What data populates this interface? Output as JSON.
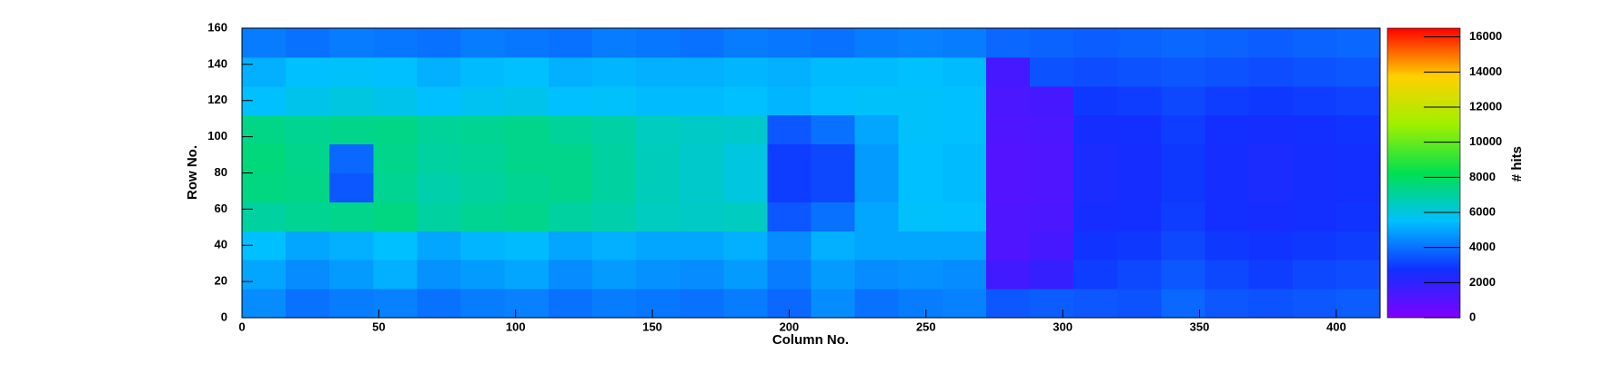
{
  "chart_data": {
    "type": "heatmap",
    "xlabel": "Column No.",
    "ylabel": "Row No.",
    "zlabel": "# hits",
    "xbins": [
      0,
      16,
      32,
      48,
      64,
      80,
      96,
      112,
      128,
      144,
      160,
      176,
      192,
      208,
      224,
      240,
      256,
      272,
      288,
      304,
      320,
      336,
      352,
      368,
      384,
      400,
      416
    ],
    "ybins": [
      0,
      16,
      32,
      48,
      64,
      80,
      96,
      112,
      128,
      144,
      160
    ],
    "values": [
      [
        4500,
        4000,
        4200,
        4300,
        4000,
        4200,
        4300,
        4000,
        4200,
        4100,
        4000,
        4200,
        3800,
        4500,
        4000,
        4200,
        4300,
        3500,
        3600,
        3500,
        3400,
        3800,
        3500,
        3400,
        3500,
        3600
      ],
      [
        5000,
        4500,
        4800,
        5200,
        4600,
        4800,
        5000,
        4500,
        4800,
        4600,
        4500,
        4800,
        4200,
        4800,
        4500,
        4600,
        4500,
        1500,
        1800,
        3000,
        3200,
        3500,
        3200,
        3000,
        3200,
        3300
      ],
      [
        5500,
        5000,
        5200,
        5500,
        5000,
        5300,
        5400,
        5000,
        5200,
        5000,
        5000,
        5200,
        4500,
        5200,
        5000,
        5000,
        5000,
        1200,
        1400,
        2800,
        2900,
        3200,
        2900,
        2800,
        2900,
        3000
      ],
      [
        7000,
        7200,
        7300,
        7500,
        7000,
        7200,
        7300,
        7000,
        6800,
        6500,
        6400,
        6500,
        3500,
        4000,
        5000,
        5600,
        5500,
        1200,
        1300,
        2600,
        2700,
        3000,
        2700,
        2600,
        2700,
        2800
      ],
      [
        7500,
        7400,
        3500,
        7200,
        6800,
        7000,
        7200,
        7300,
        7000,
        6600,
        6300,
        6000,
        3000,
        3200,
        4800,
        5500,
        5400,
        1100,
        1200,
        2500,
        2600,
        2900,
        2600,
        2500,
        2600,
        2700
      ],
      [
        7600,
        7300,
        3800,
        7300,
        7000,
        7100,
        7300,
        7300,
        7000,
        6600,
        6300,
        6000,
        3000,
        3200,
        4800,
        5500,
        5400,
        1100,
        1200,
        2500,
        2600,
        2900,
        2600,
        2500,
        2600,
        2700
      ],
      [
        7400,
        7200,
        7300,
        7400,
        7100,
        7200,
        7300,
        7100,
        6900,
        6500,
        6400,
        6300,
        3500,
        4000,
        5000,
        5600,
        5500,
        1200,
        1300,
        2600,
        2700,
        3000,
        2700,
        2600,
        2700,
        2800
      ],
      [
        5500,
        5800,
        6000,
        5800,
        5500,
        5700,
        5800,
        5500,
        5600,
        5400,
        5400,
        5500,
        5300,
        5500,
        5600,
        5600,
        5500,
        1300,
        1400,
        2900,
        3000,
        3200,
        3000,
        2900,
        3000,
        3100
      ],
      [
        5200,
        5500,
        5600,
        5500,
        5200,
        5400,
        5500,
        5200,
        5300,
        5200,
        5200,
        5300,
        5200,
        5400,
        5400,
        5500,
        5400,
        1400,
        3400,
        3300,
        3400,
        3500,
        3400,
        3300,
        3400,
        3500
      ],
      [
        4200,
        4000,
        4200,
        4100,
        4000,
        4200,
        4100,
        4000,
        4200,
        4100,
        4000,
        4200,
        4100,
        4000,
        4200,
        4300,
        4200,
        3800,
        3700,
        3600,
        3700,
        3800,
        3700,
        3600,
        3700,
        3800
      ]
    ],
    "xlim": [
      0,
      416
    ],
    "ylim": [
      0,
      160
    ],
    "xticks": [
      0,
      50,
      100,
      150,
      200,
      250,
      300,
      350,
      400
    ],
    "yticks": [
      0,
      20,
      40,
      60,
      80,
      100,
      120,
      140,
      160
    ],
    "zlim": [
      0,
      16500
    ],
    "zticks": [
      0,
      2000,
      4000,
      6000,
      8000,
      10000,
      12000,
      14000,
      16000
    ],
    "colorscale": [
      "#7f00ff",
      "#1030ff",
      "#00c0ff",
      "#00e050",
      "#a0f000",
      "#ffd000",
      "#ff0000"
    ]
  }
}
